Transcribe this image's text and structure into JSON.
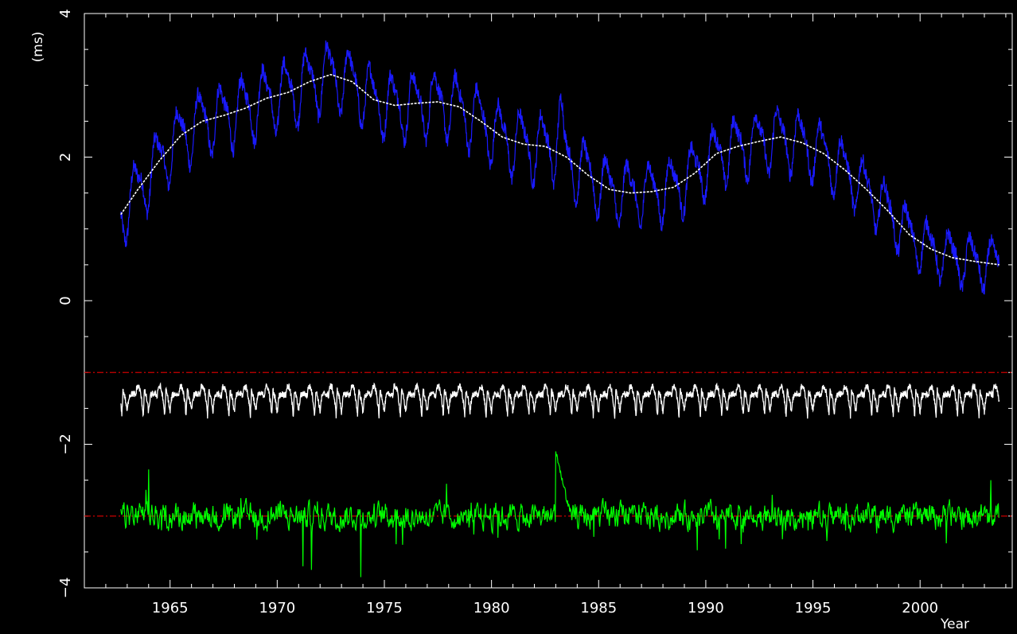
{
  "chart_data": {
    "type": "line",
    "title": "",
    "xlabel": "Year",
    "ylabel": "(ms)",
    "xlim": [
      1961.0,
      2004.3
    ],
    "ylim": [
      -4,
      4
    ],
    "x_ticks": [
      1965,
      1970,
      1975,
      1980,
      1985,
      1990,
      1995,
      2000
    ],
    "y_ticks": [
      -4,
      -2,
      0,
      2,
      4
    ],
    "y_tick_labels": [
      "−4",
      "−2",
      "0",
      "2",
      "4"
    ],
    "grid": false,
    "legend": "none",
    "background": "#000000",
    "reference_lines": [
      {
        "y": -1,
        "color": "#cc0000",
        "style": "dash-dot"
      },
      {
        "y": -3,
        "color": "#cc0000",
        "style": "dash-dot"
      }
    ],
    "series": [
      {
        "color": "#1a1aff",
        "smooth_x": [
          1962.7,
          1963.5,
          1964.5,
          1965.5,
          1966.5,
          1967.5,
          1968.5,
          1969.5,
          1970.5,
          1971.5,
          1972.5,
          1973.5,
          1974.5,
          1975.5,
          1976.5,
          1977.5,
          1978.5,
          1979.5,
          1980.5,
          1981.5,
          1982.5,
          1983.5,
          1984.5,
          1985.5,
          1986.5,
          1987.5,
          1988.5,
          1989.5,
          1990.5,
          1991.5,
          1992.5,
          1993.5,
          1994.5,
          1995.5,
          1996.5,
          1997.5,
          1998.5,
          1999.5,
          2000.5,
          2001.5,
          2002.5,
          2003.7
        ],
        "smooth_y": [
          1.2,
          1.55,
          1.95,
          2.3,
          2.5,
          2.58,
          2.68,
          2.82,
          2.9,
          3.05,
          3.15,
          3.05,
          2.8,
          2.72,
          2.75,
          2.77,
          2.7,
          2.5,
          2.28,
          2.18,
          2.15,
          2.0,
          1.75,
          1.55,
          1.5,
          1.52,
          1.58,
          1.78,
          2.05,
          2.15,
          2.22,
          2.28,
          2.2,
          2.05,
          1.82,
          1.55,
          1.25,
          0.92,
          0.72,
          0.6,
          0.55,
          0.5
        ],
        "amp_x": [
          1962.7,
          1970.0,
          1975.0,
          1980.0,
          1983.0,
          1985.0,
          1990.0,
          1995.0,
          2000.0,
          2003.7
        ],
        "amp": [
          0.38,
          0.42,
          0.4,
          0.4,
          0.42,
          0.38,
          0.38,
          0.38,
          0.32,
          0.3
        ]
      },
      {
        "color": "#ffffff",
        "x": [
          1962.7,
          1963.5,
          1964.5,
          1965.5,
          1966.5,
          1967.5,
          1968.5,
          1969.5,
          1970.5,
          1971.5,
          1972.5,
          1973.5,
          1974.5,
          1975.5,
          1976.5,
          1977.5,
          1978.5,
          1979.5,
          1980.5,
          1981.5,
          1982.5,
          1983.5,
          1984.5,
          1985.5,
          1986.5,
          1987.5,
          1988.5,
          1989.5,
          1990.5,
          1991.5,
          1992.5,
          1993.5,
          1994.5,
          1995.5,
          1996.5,
          1997.5,
          1998.5,
          1999.5,
          2000.5,
          2001.5,
          2002.5,
          2003.7
        ],
        "y": [
          1.2,
          1.55,
          1.95,
          2.3,
          2.5,
          2.58,
          2.68,
          2.82,
          2.9,
          3.05,
          3.15,
          3.05,
          2.8,
          2.72,
          2.75,
          2.77,
          2.7,
          2.5,
          2.28,
          2.18,
          2.15,
          2.0,
          1.75,
          1.55,
          1.5,
          1.52,
          1.58,
          1.78,
          2.05,
          2.15,
          2.22,
          2.28,
          2.2,
          2.05,
          1.82,
          1.55,
          1.25,
          0.92,
          0.72,
          0.6,
          0.55,
          0.5
        ]
      },
      {
        "color": "#ffffff",
        "offset": -1,
        "period_years": 1.0,
        "profile_phase": [
          0.0,
          0.05,
          0.1,
          0.2,
          0.3,
          0.4,
          0.45,
          0.55,
          0.62,
          0.7,
          0.75,
          0.8,
          0.9,
          1.0
        ],
        "profile_value": [
          -0.55,
          -0.4,
          -0.32,
          -0.3,
          -0.3,
          -0.32,
          -0.2,
          -0.2,
          -0.28,
          -0.45,
          -0.6,
          -0.25,
          -0.35,
          -0.55
        ],
        "x_start": 1962.7,
        "x_end": 2003.7
      },
      {
        "color": "#00ff00",
        "offset": -3,
        "baseline": -3.0,
        "spikes_x": [
          1964.0,
          1968.3,
          1971.2,
          1971.6,
          1973.9,
          1977.9,
          1983.0,
          1983.3,
          2003.3
        ],
        "spikes_y": [
          -2.35,
          -2.75,
          -3.7,
          -3.75,
          -3.85,
          -2.55,
          -2.1,
          -2.6,
          -2.5
        ]
      }
    ]
  }
}
